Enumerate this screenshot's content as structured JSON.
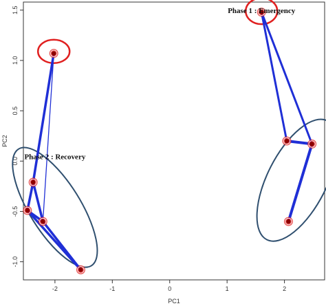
{
  "chart_data": {
    "type": "scatter",
    "xlabel": "PC1",
    "ylabel": "PC2",
    "xlim": [
      -2.55,
      2.7
    ],
    "ylim": [
      -1.18,
      1.58
    ],
    "x_ticks": [
      -2,
      -1,
      0,
      1,
      2
    ],
    "y_ticks": [
      -1.0,
      -0.5,
      0.0,
      0.5,
      1.0,
      1.5
    ],
    "x_tick_labels": [
      "-2",
      "-1",
      "0",
      "1",
      "2"
    ],
    "y_tick_labels": [
      "-1.0",
      "-0.5",
      "0.0",
      "0.5",
      "1.0",
      "1.5"
    ],
    "grid": false,
    "colors": {
      "point_outer": "#e02020",
      "point_inner": "#8b0000",
      "edge": "#1f2fd6",
      "emergency_ring": "#e02020",
      "recovery_ring": "#2f4f6f",
      "frame": "#333333"
    },
    "groups": [
      {
        "label": "Phase 2 : Recovery",
        "label_position": [
          -2.0,
          0.02
        ],
        "points": [
          {
            "x": -2.02,
            "y": 1.07
          },
          {
            "x": -2.38,
            "y": -0.21
          },
          {
            "x": -2.48,
            "y": -0.49
          },
          {
            "x": -2.21,
            "y": -0.6
          },
          {
            "x": -1.55,
            "y": -1.08
          }
        ],
        "edges": [
          {
            "from": 0,
            "to": 1,
            "w": 3.5
          },
          {
            "from": 0,
            "to": 3,
            "w": 1.3
          },
          {
            "from": 1,
            "to": 2,
            "w": 3.5
          },
          {
            "from": 1,
            "to": 3,
            "w": 3.5
          },
          {
            "from": 2,
            "to": 3,
            "w": 3.5
          },
          {
            "from": 2,
            "to": 4,
            "w": 3.5
          },
          {
            "from": 3,
            "to": 4,
            "w": 3.5
          }
        ],
        "emergency_ring": {
          "cx": -2.02,
          "cy": 1.09,
          "rx_px": 23,
          "ry_px": 17,
          "angle": 0
        },
        "recovery_ellipse": {
          "cx": -2.0,
          "cy": -0.46,
          "rx_px": 100,
          "ry_px": 37,
          "angle": 58
        }
      },
      {
        "label": "Phase 1 : Emergency",
        "label_position": [
          1.6,
          1.47
        ],
        "points": [
          {
            "x": 1.6,
            "y": 1.48
          },
          {
            "x": 2.04,
            "y": 0.2
          },
          {
            "x": 2.48,
            "y": 0.17
          },
          {
            "x": 2.07,
            "y": -0.6
          }
        ],
        "edges": [
          {
            "from": 0,
            "to": 1,
            "w": 3.0
          },
          {
            "from": 0,
            "to": 2,
            "w": 3.0
          },
          {
            "from": 1,
            "to": 2,
            "w": 4.0
          },
          {
            "from": 2,
            "to": 3,
            "w": 4.0
          }
        ],
        "emergency_ring": {
          "cx": 1.6,
          "cy": 1.49,
          "rx_px": 23,
          "ry_px": 19,
          "angle": 0
        },
        "recovery_ellipse": {
          "cx": 2.22,
          "cy": -0.19,
          "rx_px": 97,
          "ry_px": 43,
          "angle": -63
        }
      }
    ]
  }
}
